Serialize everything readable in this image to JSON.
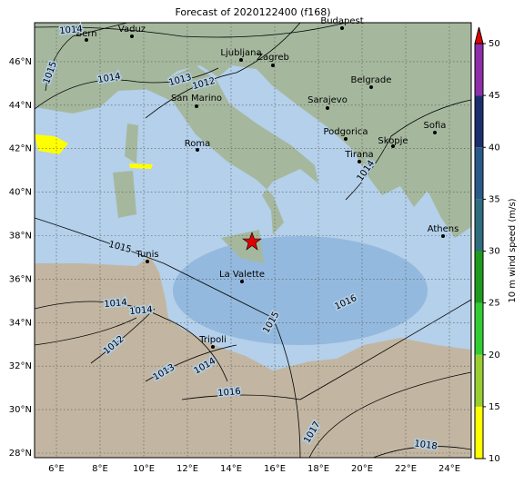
{
  "title": "Forecast of 2020122400 (f168)",
  "lon_labels": [
    "6°E",
    "8°E",
    "10°E",
    "12°E",
    "14°E",
    "16°E",
    "18°E",
    "20°E",
    "22°E",
    "24°E"
  ],
  "lat_labels": [
    "28°N",
    "30°N",
    "32°N",
    "34°N",
    "36°N",
    "38°N",
    "40°N",
    "42°N",
    "44°N",
    "46°N"
  ],
  "cities": [
    "Bern",
    "Vaduz",
    "Budapest",
    "Ljubljana",
    "Zagreb",
    "Belgrade",
    "San Marino",
    "Sarajevo",
    "Sofia",
    "Podgorica",
    "Skopje",
    "Roma",
    "Tirana",
    "Athens",
    "Tunis",
    "La Valette",
    "Tripoli"
  ],
  "isobar_labels": [
    1014,
    1015,
    1014,
    1013,
    1012,
    1015,
    1014,
    1014,
    1012,
    1013,
    1014,
    1016,
    1015,
    1016,
    1017,
    1018,
    1014
  ],
  "colorbar": {
    "label": "10 m wind speed (m/s)",
    "lim": [
      10,
      50
    ],
    "ticks": [
      10,
      15,
      20,
      25,
      30,
      35,
      40,
      45,
      50
    ],
    "colors": [
      "#ffff00",
      "#9acd32",
      "#32cd32",
      "#1e9b1e",
      "#2e6e7e",
      "#2a5a8a",
      "#1c2e6e",
      "#8e2ea8"
    ],
    "extend_color": "#e00000"
  }
}
